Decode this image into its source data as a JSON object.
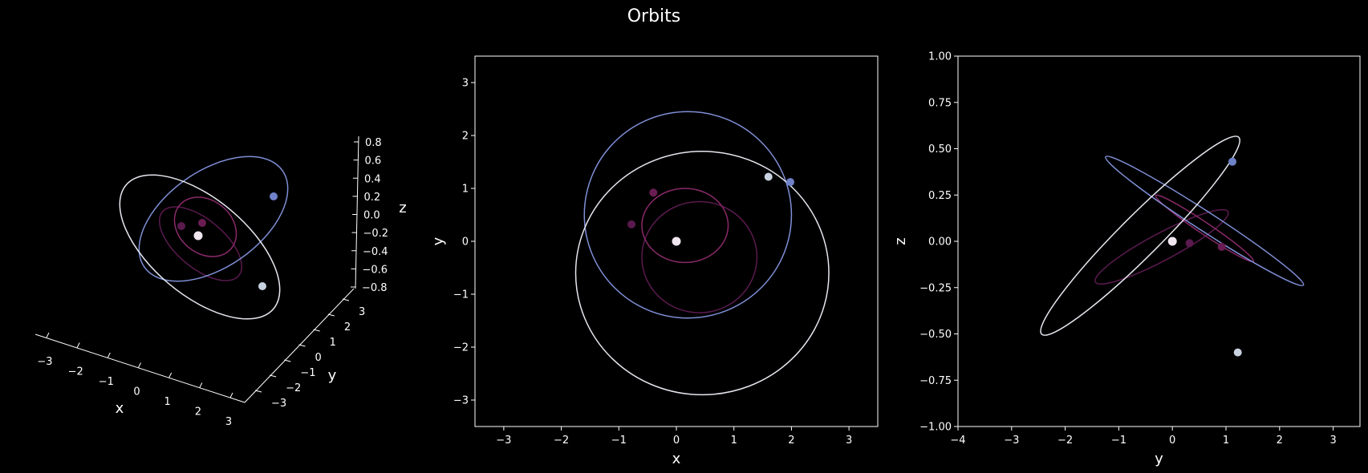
{
  "figure": {
    "title": "Orbits"
  },
  "colors": {
    "background": "#000000",
    "axes": "#ffffff",
    "body": [
      "#3d1a57",
      "#5a1a4e",
      "#8a2a6a",
      "#7f8fd6",
      "#e6e8f0"
    ],
    "body_marker": [
      "#3d1a57",
      "#6a1d52",
      "#5a1a4e",
      "#6f82c9",
      "#c9d2e0"
    ],
    "center": "#f0e6f0"
  },
  "chart_data": [
    {
      "type": "line3d",
      "name": "3d-view",
      "xlabel": "x",
      "ylabel": "y",
      "zlabel": "z",
      "xlim": [
        -3.5,
        3.5
      ],
      "ylim": [
        -3.5,
        3.5
      ],
      "zlim": [
        -0.8,
        0.8
      ],
      "xticks": [
        "−3",
        "−2",
        "−1",
        "0",
        "1",
        "2",
        "3"
      ],
      "yticks": [
        "−3",
        "−2",
        "−1",
        "0",
        "1",
        "2",
        "3"
      ],
      "zticks": [
        "−0.8",
        "−0.6",
        "−0.4",
        "−0.2",
        "0.0",
        "0.2",
        "0.4",
        "0.6",
        "0.8"
      ]
    },
    {
      "type": "line",
      "name": "xy-projection",
      "xlabel": "x",
      "ylabel": "y",
      "xlim": [
        -3.5,
        3.5
      ],
      "ylim": [
        -3.5,
        3.5
      ],
      "xticks": [
        -3,
        -2,
        -1,
        0,
        1,
        2,
        3
      ],
      "yticks": [
        -3,
        -2,
        -1,
        0,
        1,
        2,
        3
      ],
      "xticklabels": [
        "−3",
        "−2",
        "−1",
        "0",
        "1",
        "2",
        "3"
      ],
      "yticklabels": [
        "−3",
        "−2",
        "−1",
        "0",
        "1",
        "2",
        "3"
      ],
      "center": [
        0,
        0
      ],
      "orbits": [
        {
          "cx": 0.4,
          "cy": -0.3,
          "rx": 1.0,
          "ry": 1.05,
          "marker": [
            -0.4,
            0.92
          ]
        },
        {
          "cx": 0.15,
          "cy": 0.3,
          "rx": 0.75,
          "ry": 0.7,
          "marker": [
            -0.78,
            0.32
          ]
        },
        {
          "cx": 0.2,
          "cy": 0.5,
          "rx": 1.8,
          "ry": 1.95,
          "marker": [
            1.98,
            1.12
          ]
        },
        {
          "cx": 0.45,
          "cy": -0.6,
          "rx": 2.2,
          "ry": 2.3,
          "marker": [
            1.6,
            1.22
          ]
        }
      ]
    },
    {
      "type": "line",
      "name": "yz-projection",
      "xlabel": "y",
      "ylabel": "z",
      "xlim": [
        -4,
        3.5
      ],
      "ylim": [
        -1.0,
        1.0
      ],
      "xticks": [
        -4,
        -3,
        -2,
        -1,
        0,
        1,
        2,
        3
      ],
      "yticks": [
        -1.0,
        -0.75,
        -0.5,
        -0.25,
        0.0,
        0.25,
        0.5,
        0.75,
        1.0
      ],
      "xticklabels": [
        "−4",
        "−3",
        "−2",
        "−1",
        "0",
        "1",
        "2",
        "3"
      ],
      "yticklabels": [
        "−1.00",
        "−0.75",
        "−0.50",
        "−0.25",
        "0.00",
        "0.25",
        "0.50",
        "0.75",
        "1.00"
      ],
      "center": [
        0,
        0
      ],
      "orbits": [
        {
          "cx": -0.2,
          "cy": -0.03,
          "rx": 1.4,
          "ry": 0.28,
          "angle": -28,
          "marker": [
            0.92,
            -0.03
          ]
        },
        {
          "cx": 0.6,
          "cy": 0.07,
          "rx": 1.1,
          "ry": 0.12,
          "angle": 34,
          "marker": [
            0.32,
            -0.01
          ]
        },
        {
          "cx": 0.6,
          "cy": 0.11,
          "rx": 2.2,
          "ry": 0.2,
          "angle": 33,
          "marker": [
            1.12,
            0.43
          ]
        },
        {
          "cx": -0.6,
          "cy": 0.03,
          "rx": 2.6,
          "ry": 0.42,
          "angle": -45,
          "marker": [
            1.22,
            -0.6
          ]
        }
      ]
    }
  ]
}
